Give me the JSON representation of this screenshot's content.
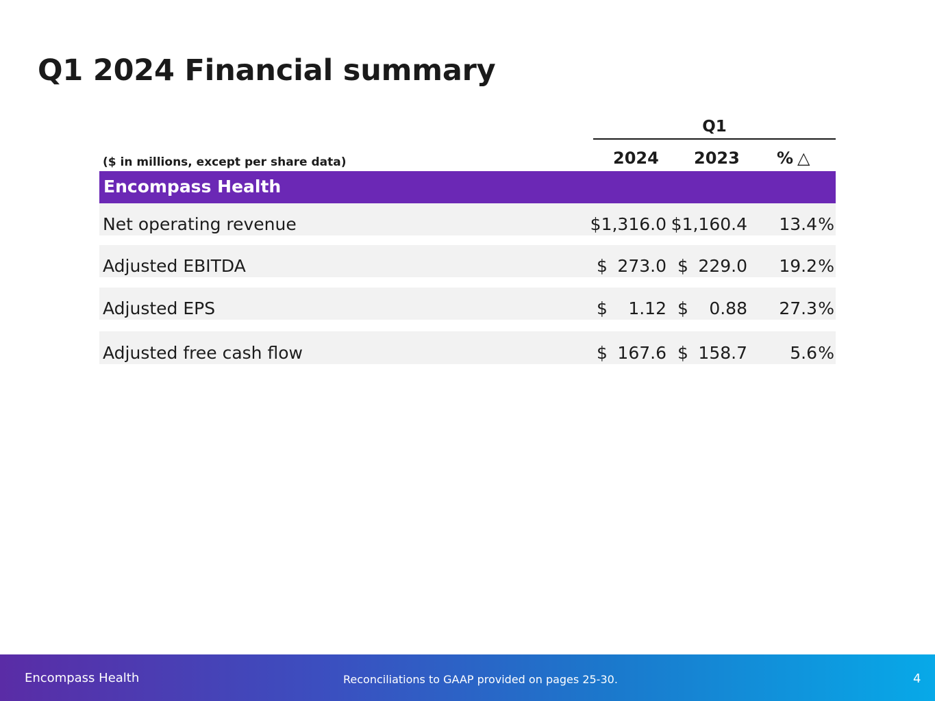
{
  "slide": {
    "title": "Q1 2024 Financial summary",
    "units_note": "($ in millions, except per share data)",
    "period_label": "Q1",
    "columns": {
      "current": "2024",
      "prior": "2023",
      "change": "%",
      "change_symbol": "△"
    },
    "section_label": "Encompass Health",
    "rows": [
      {
        "label": "Net operating revenue",
        "cur_dollar": "",
        "cur_value": "$1,316.0",
        "prior_dollar": "",
        "prior_value": "$1,160.4",
        "change": "13.4",
        "pct": "%"
      },
      {
        "label": "Adjusted EBITDA",
        "cur_dollar": "$",
        "cur_value": "273.0",
        "prior_dollar": "$",
        "prior_value": "229.0",
        "change": "19.2",
        "pct": "%"
      },
      {
        "label": "Adjusted EPS",
        "cur_dollar": "$",
        "cur_value": "1.12",
        "prior_dollar": "$",
        "prior_value": "0.88",
        "change": "27.3",
        "pct": "%"
      },
      {
        "label": "Adjusted free cash flow",
        "cur_dollar": "$",
        "cur_value": "167.6",
        "prior_dollar": "$",
        "prior_value": "158.7",
        "change": "5.6",
        "pct": "%"
      }
    ]
  },
  "footer": {
    "brand": "Encompass Health",
    "note": "Reconciliations to GAAP provided on pages 25-30.",
    "page": "4"
  },
  "colors": {
    "section_band": "#6b28b5",
    "row_background": "#f2f2f2",
    "footer_gradient_start": "#5a2ca6",
    "footer_gradient_end": "#07a9e8"
  }
}
